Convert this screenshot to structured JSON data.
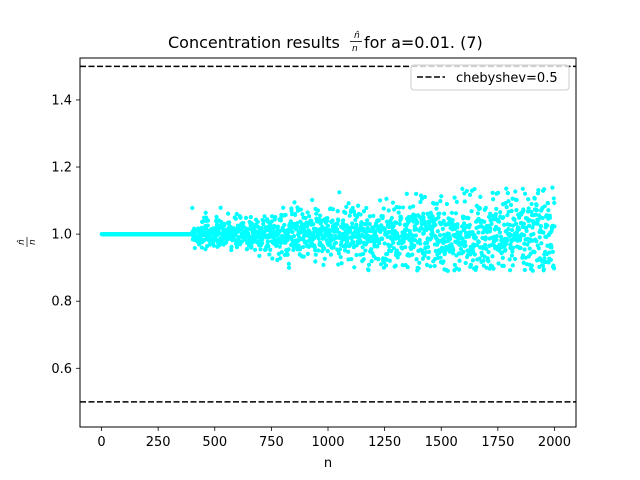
{
  "chart_data": {
    "type": "scatter",
    "title_prefix": "Concentration results ",
    "title_math_num": "n̂",
    "title_math_den": "n",
    "title_suffix": " for a=0.01. (7)",
    "xlabel": "n",
    "ylabel_num": "n̂",
    "ylabel_den": "n",
    "xlim": [
      -95,
      2095
    ],
    "ylim": [
      0.425,
      1.525
    ],
    "xticks": [
      0,
      250,
      500,
      750,
      1000,
      1250,
      1500,
      1750,
      2000
    ],
    "xtick_labels": [
      "0",
      "250",
      "500",
      "750",
      "1000",
      "1250",
      "1500",
      "1750",
      "2000"
    ],
    "yticks": [
      0.6,
      0.8,
      1.0,
      1.2,
      1.4
    ],
    "ytick_labels": [
      "0.6",
      "0.8",
      "1.0",
      "1.2",
      "1.4"
    ],
    "grid": false,
    "legend_position": "top-right",
    "hlines": [
      {
        "name": "chebyshev=0.5",
        "y": 1.5,
        "color": "#000000",
        "style": "dashed"
      },
      {
        "name": "",
        "y": 0.5,
        "color": "#000000",
        "style": "dashed"
      }
    ],
    "series": [
      {
        "color": "#00ffff",
        "n_start": 1,
        "n_end": 2000,
        "constant_until": 400,
        "constant_value": 1.0,
        "spread_initial": 0.02,
        "spread_growth": 3e-05,
        "ymax_observed": 1.14,
        "ymin_observed": 0.89
      }
    ]
  }
}
